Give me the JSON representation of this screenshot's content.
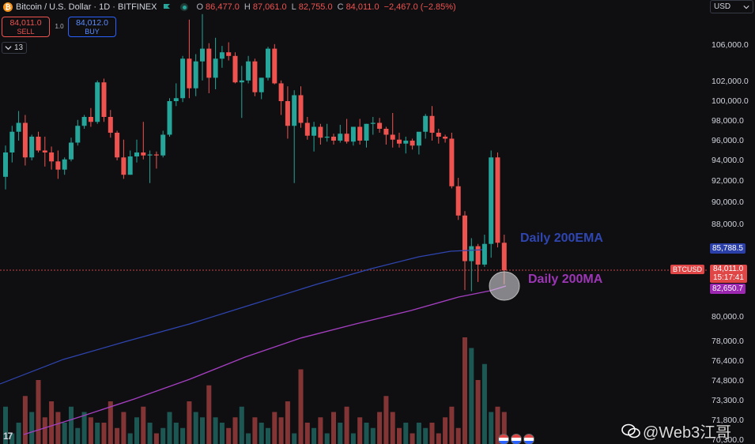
{
  "header": {
    "symbol_title": "Bitcoin / U.S. Dollar · 1D · BITFINEX",
    "ohlc": [
      {
        "key": "O",
        "value": "86,477.0"
      },
      {
        "key": "H",
        "value": "87,061.0"
      },
      {
        "key": "L",
        "value": "82,755.0"
      },
      {
        "key": "C",
        "value": "84,011.0"
      },
      {
        "key": "",
        "value": "−2,467.0 (−2.85%)"
      }
    ]
  },
  "trade": {
    "sell_price": "84,011.0",
    "sell_label": "SELL",
    "spread": "1.0",
    "buy_price": "84,012.0",
    "buy_label": "BUY"
  },
  "indicators_count": "13",
  "currency": "USD",
  "price_axis": {
    "ticks": [
      "106,000.0",
      "102,000.0",
      "100,000.0",
      "98,000.0",
      "96,000.0",
      "94,000.0",
      "92,000.0",
      "90,000.0",
      "88,000.0",
      "80,000.0",
      "78,000.0",
      "76,400.0",
      "74,800.0",
      "73,300.0",
      "71,800.0",
      "70,300.0"
    ],
    "ema_value": "85,788.5",
    "current_price": "84,011.0",
    "countdown": "15:17:41",
    "ma_value": "82,650.7",
    "symbol_tag": "BTCUSD"
  },
  "annotations": {
    "ema_label": "Daily 200EMA",
    "ma_label": "Daily 200MA"
  },
  "watermark": "@Web3江哥",
  "tv_logo": "17",
  "colors": {
    "up": "#26a69a",
    "down": "#ef5350",
    "ema": "#2f45b0",
    "ma": "#9c36b5",
    "background": "#0f0f12"
  },
  "chart_data": {
    "type": "line",
    "title": "Bitcoin / U.S. Dollar · 1D · BITFINEX",
    "candles": [
      [
        92400,
        95500,
        91200,
        94800
      ],
      [
        94800,
        97500,
        93800,
        96900
      ],
      [
        96900,
        99000,
        96000,
        97800
      ],
      [
        97800,
        98600,
        93500,
        94300
      ],
      [
        94300,
        96600,
        94000,
        96400
      ],
      [
        96400,
        96900,
        94800,
        95000
      ],
      [
        95000,
        96400,
        93400,
        94800
      ],
      [
        94800,
        95400,
        93100,
        93900
      ],
      [
        93900,
        95000,
        92200,
        93100
      ],
      [
        93100,
        94300,
        92600,
        94100
      ],
      [
        94100,
        96300,
        93900,
        95800
      ],
      [
        95800,
        98100,
        95500,
        97500
      ],
      [
        97500,
        98600,
        97200,
        98400
      ],
      [
        98400,
        99300,
        97400,
        97900
      ],
      [
        97900,
        102100,
        97700,
        101900
      ],
      [
        101900,
        102300,
        97900,
        98400
      ],
      [
        98400,
        99100,
        96300,
        96800
      ],
      [
        96800,
        97000,
        94000,
        94300
      ],
      [
        94300,
        96100,
        92200,
        92600
      ],
      [
        92600,
        95000,
        92600,
        94400
      ],
      [
        94400,
        96100,
        93800,
        94800
      ],
      [
        94800,
        97900,
        94100,
        94500
      ],
      [
        94500,
        95000,
        91800,
        94600
      ],
      [
        94600,
        94900,
        93200,
        94500
      ],
      [
        94500,
        97000,
        94300,
        96600
      ],
      [
        96600,
        100300,
        96400,
        100000
      ],
      [
        100000,
        101800,
        99500,
        100300
      ],
      [
        100300,
        104800,
        99900,
        104500
      ],
      [
        104500,
        108800,
        100300,
        101300
      ],
      [
        101300,
        105000,
        100500,
        104200
      ],
      [
        104200,
        109400,
        102100,
        105600
      ],
      [
        105600,
        106200,
        100800,
        102400
      ],
      [
        102400,
        106800,
        101200,
        104500
      ],
      [
        104500,
        105900,
        103500,
        105200
      ],
      [
        105200,
        106300,
        104300,
        104800
      ],
      [
        104800,
        105200,
        101800,
        101900
      ],
      [
        101900,
        103700,
        98300,
        102100
      ],
      [
        102100,
        104800,
        101800,
        104200
      ],
      [
        104200,
        104500,
        100500,
        100900
      ],
      [
        100900,
        102400,
        100200,
        102400
      ],
      [
        102400,
        105800,
        102100,
        105600
      ],
      [
        105600,
        106100,
        101700,
        101800
      ],
      [
        101800,
        102100,
        98600,
        100000
      ],
      [
        100000,
        101500,
        96200,
        97500
      ],
      [
        97500,
        101100,
        91800,
        100600
      ],
      [
        100600,
        101500,
        97300,
        97800
      ],
      [
        97800,
        98400,
        96100,
        96500
      ],
      [
        96500,
        97900,
        94900,
        97400
      ],
      [
        97400,
        97700,
        95600,
        96300
      ],
      [
        96300,
        97700,
        95900,
        96400
      ],
      [
        96400,
        96700,
        95600,
        96000
      ],
      [
        96000,
        97600,
        95800,
        96700
      ],
      [
        96700,
        98200,
        95700,
        95900
      ],
      [
        95900,
        97400,
        95500,
        97400
      ],
      [
        97400,
        98200,
        95600,
        96000
      ],
      [
        96000,
        97700,
        95300,
        97700
      ],
      [
        97700,
        98400,
        96600,
        97800
      ],
      [
        97800,
        98300,
        96800,
        97200
      ],
      [
        97200,
        97400,
        95600,
        96600
      ],
      [
        96600,
        98800,
        95300,
        96100
      ],
      [
        96100,
        96800,
        95300,
        95700
      ],
      [
        95700,
        96400,
        94700,
        96000
      ],
      [
        96000,
        96200,
        95100,
        95500
      ],
      [
        95500,
        96800,
        94600,
        96900
      ],
      [
        96900,
        98700,
        96200,
        98500
      ],
      [
        98500,
        99500,
        96000,
        96800
      ],
      [
        96800,
        97200,
        95700,
        96400
      ],
      [
        96400,
        96600,
        95800,
        96200
      ],
      [
        96200,
        96800,
        91300,
        91500
      ],
      [
        91500,
        92300,
        88400,
        88800
      ],
      [
        88800,
        89200,
        82300,
        84800
      ],
      [
        84800,
        86800,
        82200,
        86100
      ],
      [
        86100,
        86300,
        83000,
        84500
      ],
      [
        84500,
        87100,
        84300,
        86300
      ],
      [
        86300,
        95000,
        85100,
        94300
      ],
      [
        94300,
        94800,
        86000,
        86400
      ],
      [
        86400,
        87100,
        82800,
        84000
      ]
    ],
    "ema_200": {
      "name": "Daily 200EMA",
      "value": 85788.5
    },
    "ma_200": {
      "name": "Daily 200MA",
      "value": 82650.7
    },
    "current_price": 84011.0,
    "price_axis_ticks": [
      106000,
      102000,
      100000,
      98000,
      96000,
      94000,
      92000,
      90000,
      88000,
      80000,
      78000,
      76400,
      74800,
      73300,
      71800,
      70300
    ],
    "volume_relative": [
      0.35,
      0.1,
      0.2,
      0.45,
      0.3,
      0.6,
      0.25,
      0.4,
      0.3,
      0.2,
      0.35,
      0.15,
      0.3,
      0.25,
      0.2,
      0.2,
      0.4,
      0.15,
      0.3,
      0.1,
      0.25,
      0.35,
      0.2,
      0.1,
      0.15,
      0.3,
      0.2,
      0.15,
      0.4,
      0.3,
      0.25,
      0.55,
      0.25,
      0.2,
      0.15,
      0.25,
      0.35,
      0.1,
      0.25,
      0.2,
      0.15,
      0.3,
      0.25,
      0.4,
      0.1,
      0.7,
      0.2,
      0.15,
      0.25,
      0.1,
      0.3,
      0.2,
      0.35,
      0.1,
      0.25,
      0.2,
      0.15,
      0.3,
      0.45,
      0.3,
      0.15,
      0.2,
      0.1,
      0.2,
      0.15,
      0.2,
      0.1,
      0.25,
      0.35,
      0.15,
      1.0,
      0.9,
      0.6,
      0.75,
      0.3,
      0.35,
      0.3
    ]
  }
}
